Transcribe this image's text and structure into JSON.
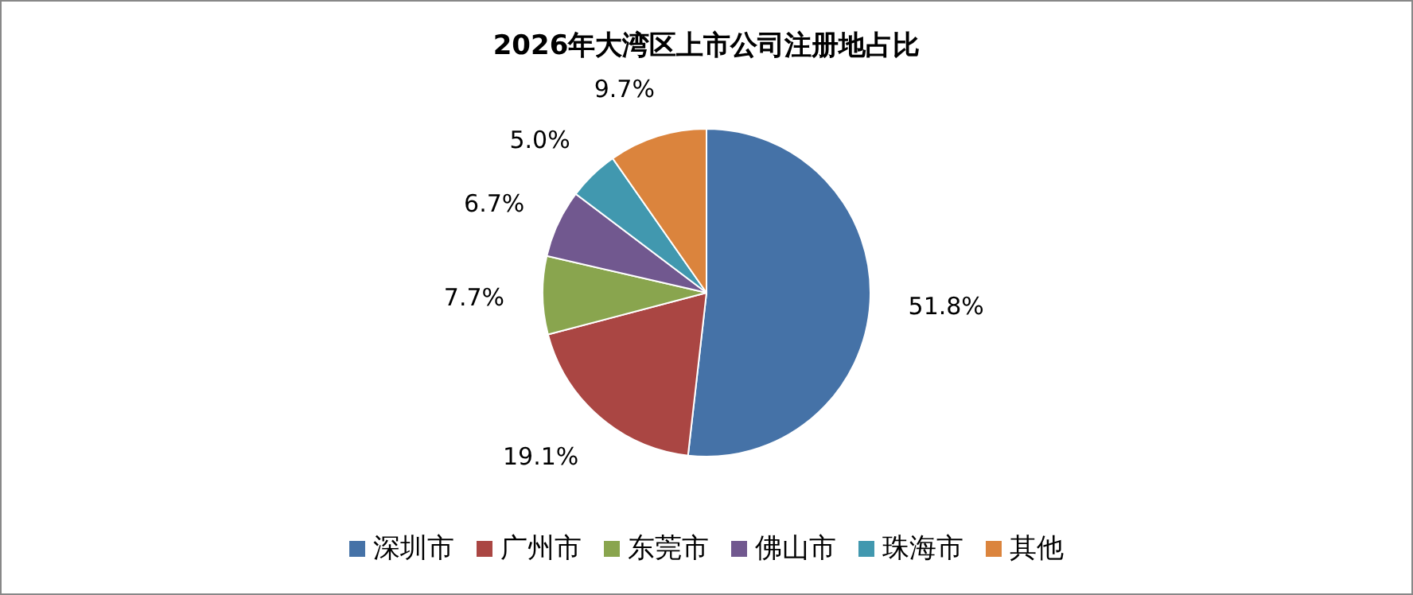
{
  "chart_data": {
    "type": "pie",
    "title": "2026年大湾区上市公司注册地占比",
    "categories": [
      "深圳市",
      "广州市",
      "东莞市",
      "佛山市",
      "珠海市",
      "其他"
    ],
    "values": [
      51.8,
      19.1,
      7.7,
      6.7,
      5.0,
      9.7
    ],
    "colors": [
      "#4572a7",
      "#aa4643",
      "#89a54e",
      "#71588f",
      "#4198af",
      "#db843d"
    ],
    "value_labels": [
      "51.8%",
      "19.1%",
      "7.7%",
      "6.7%",
      "5.0%",
      "9.7%"
    ],
    "legend": "bottom"
  }
}
